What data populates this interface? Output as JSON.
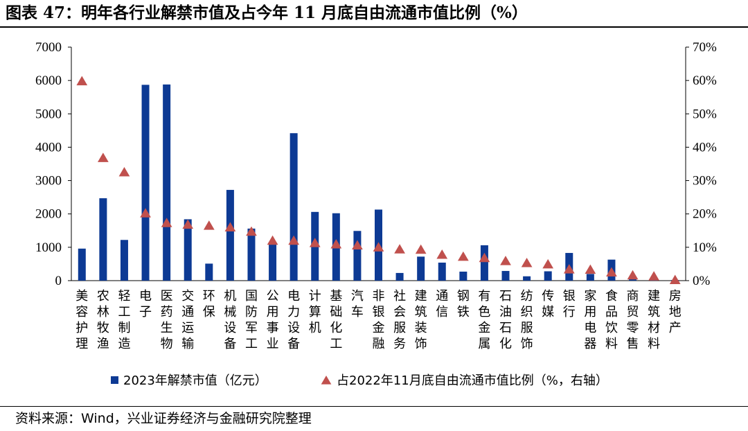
{
  "page": {
    "title": "图表 47：明年各行业解禁市值及占今年 11 月底自由流通市值比例（%）",
    "source": "资料来源：Wind，兴业证券经济与金融研究院整理"
  },
  "chart_data": {
    "type": "bar",
    "categories": [
      "美容护理",
      "农林牧渔",
      "轻工制造",
      "电子",
      "医药生物",
      "交通运输",
      "环保",
      "机械设备",
      "国防军工",
      "公用事业",
      "电力设备",
      "计算机",
      "基础化工",
      "汽车",
      "非银金融",
      "社会服务",
      "建筑装饰",
      "通信",
      "钢铁",
      "有色金属",
      "石油石化",
      "纺织服饰",
      "传媒",
      "银行",
      "家用电器",
      "食品饮料",
      "商贸零售",
      "建筑材料",
      "房地产"
    ],
    "series": [
      {
        "name": "2023年解禁市值（亿元）",
        "type": "bar",
        "axis": "left",
        "color": "#0d3a94",
        "values": [
          960,
          2470,
          1220,
          5870,
          5880,
          1840,
          510,
          2720,
          1560,
          1120,
          4420,
          2060,
          2020,
          1490,
          2130,
          230,
          720,
          540,
          270,
          1060,
          290,
          130,
          280,
          830,
          200,
          630,
          60,
          40,
          20
        ]
      },
      {
        "name": "占2022年11月底自由流通市值比例（%，右轴）",
        "type": "scatter",
        "marker": "triangle",
        "axis": "right",
        "color": "#c0504d",
        "values": [
          59.8,
          36.8,
          32.5,
          20.2,
          17.3,
          16.8,
          16.5,
          16.0,
          14.7,
          12.0,
          12.0,
          11.3,
          10.9,
          10.6,
          10.0,
          9.4,
          9.3,
          7.8,
          7.2,
          6.8,
          5.9,
          5.3,
          4.9,
          3.4,
          3.3,
          2.5,
          1.6,
          1.3,
          0.2
        ]
      }
    ],
    "y_left": {
      "min": 0,
      "max": 7000,
      "ticks": [
        "0",
        "1000",
        "2000",
        "3000",
        "4000",
        "5000",
        "6000",
        "7000"
      ]
    },
    "y_right": {
      "min": 0,
      "max": 70,
      "ticks": [
        "0%",
        "10%",
        "20%",
        "30%",
        "40%",
        "50%",
        "60%",
        "70%"
      ]
    },
    "grid": false,
    "legend_position": "bottom"
  }
}
